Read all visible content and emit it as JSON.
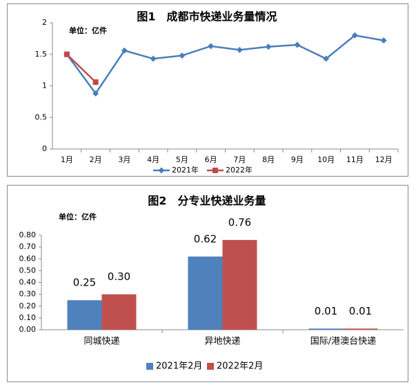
{
  "chart_data": [
    {
      "type": "line",
      "title": "图1　成都市快递业务量情况",
      "unit": "单位：亿件",
      "categories": [
        "1月",
        "2月",
        "3月",
        "4月",
        "5月",
        "6月",
        "7月",
        "8月",
        "9月",
        "10月",
        "11月",
        "12月"
      ],
      "series": [
        {
          "name": "2021年",
          "color": "#4a7ebb",
          "values": [
            1.5,
            0.88,
            1.56,
            1.43,
            1.48,
            1.63,
            1.57,
            1.62,
            1.65,
            1.43,
            1.8,
            1.72
          ]
        },
        {
          "name": "2022年",
          "color": "#be4b48",
          "values": [
            1.5,
            1.06,
            null,
            null,
            null,
            null,
            null,
            null,
            null,
            null,
            null,
            null
          ]
        }
      ],
      "ylim": [
        0,
        2
      ],
      "yticks": [
        0,
        0.5,
        1,
        1.5,
        2
      ],
      "legend": "bottom"
    },
    {
      "type": "bar",
      "title": "图2　分专业快递业务量",
      "unit": "单位：亿件",
      "categories": [
        "同城快递",
        "异地快递",
        "国际/港澳台快递"
      ],
      "series": [
        {
          "name": "2021年2月",
          "color": "#4f81bd",
          "values": [
            0.25,
            0.62,
            0.01
          ]
        },
        {
          "name": "2022年2月",
          "color": "#c0504d",
          "values": [
            0.3,
            0.76,
            0.01
          ],
          "value_labels": [
            "0.30",
            "0.76",
            "0.01"
          ]
        }
      ],
      "ylim": [
        0,
        0.8
      ],
      "yticks": [
        {
          "value": 0,
          "label": "0.00"
        },
        {
          "value": 0.1,
          "label": "0.10"
        },
        {
          "value": 0.2,
          "label": "0.20"
        },
        {
          "value": 0.3,
          "label": "0.30"
        },
        {
          "value": 0.4,
          "label": "0.40"
        },
        {
          "value": 0.5,
          "label": "0.50"
        },
        {
          "value": 0.6,
          "label": "0.60"
        },
        {
          "value": 0.7,
          "label": "0.70"
        },
        {
          "value": 0.8,
          "label": "0.80"
        }
      ],
      "legend": "bottom"
    }
  ]
}
